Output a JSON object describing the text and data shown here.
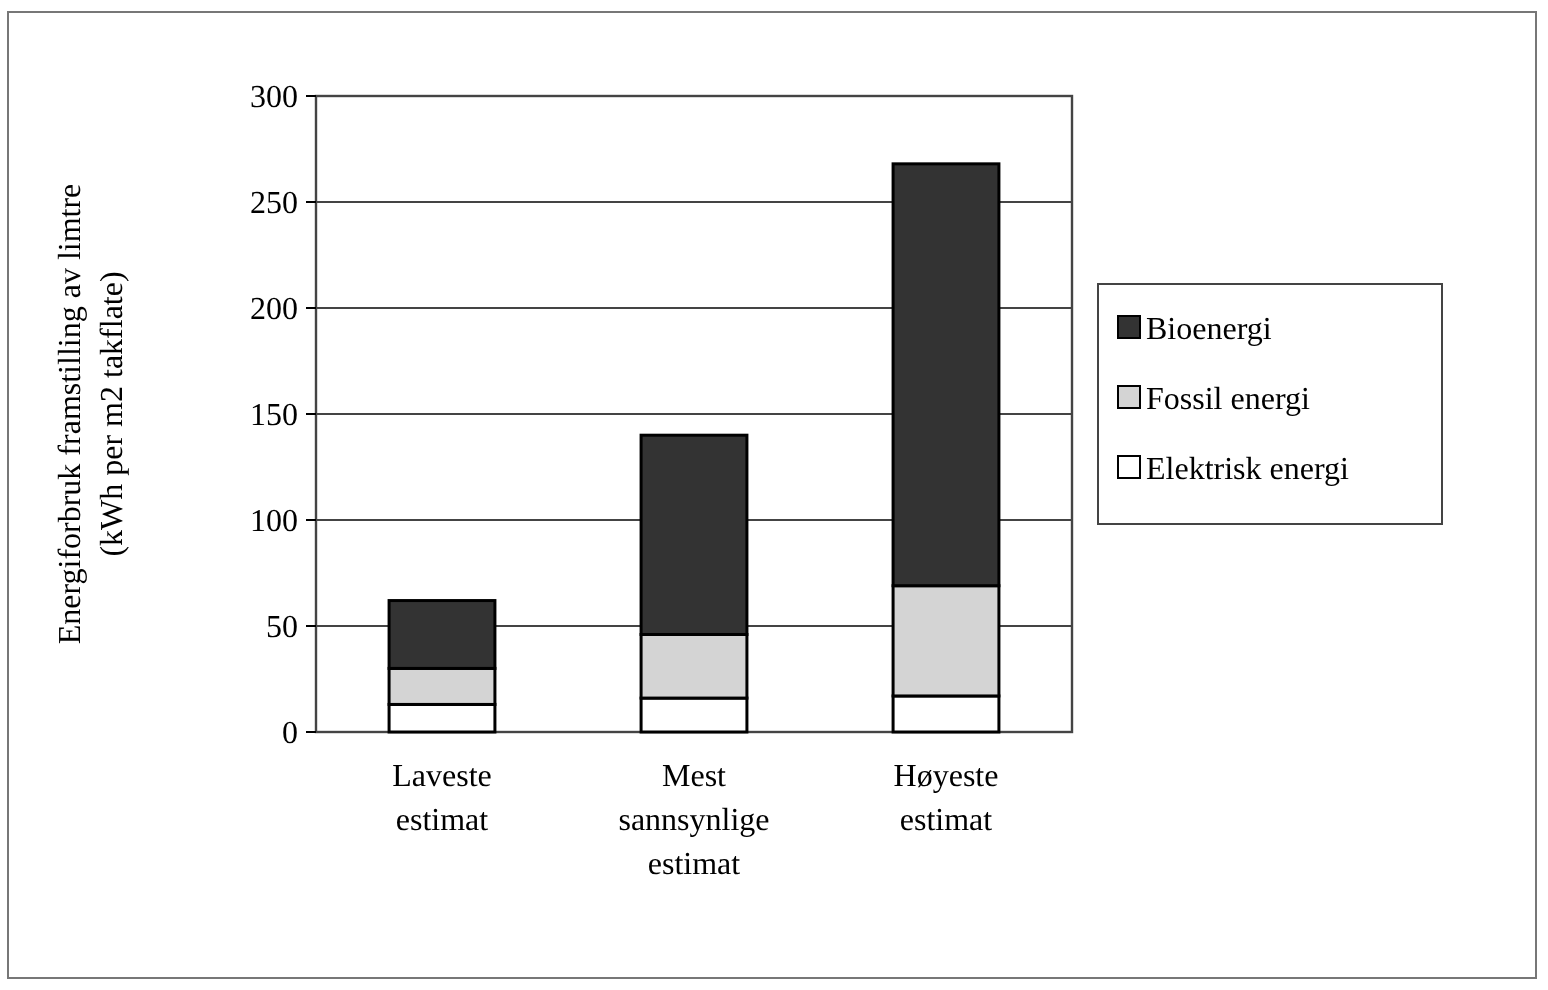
{
  "chart_data": {
    "type": "bar",
    "stacked": true,
    "ylabel": "Energiforbruk framstilling av limtre (kWh per m2 takflate)",
    "categories": [
      "Laveste estimat",
      "Mest sannsynlige estimat",
      "Høyeste estimat"
    ],
    "series": [
      {
        "name": "Elektrisk energi",
        "color": "#ffffff",
        "values": [
          13,
          16,
          17
        ]
      },
      {
        "name": "Fossil energi",
        "color": "#d4d4d4",
        "values": [
          17,
          30,
          52
        ]
      },
      {
        "name": "Bioenergi",
        "color": "#333333",
        "values": [
          32,
          94,
          199
        ]
      }
    ],
    "ylim": [
      0,
      300
    ],
    "yticks": [
      0,
      50,
      100,
      150,
      200,
      250,
      300
    ],
    "grid": "y",
    "legend": "right"
  }
}
